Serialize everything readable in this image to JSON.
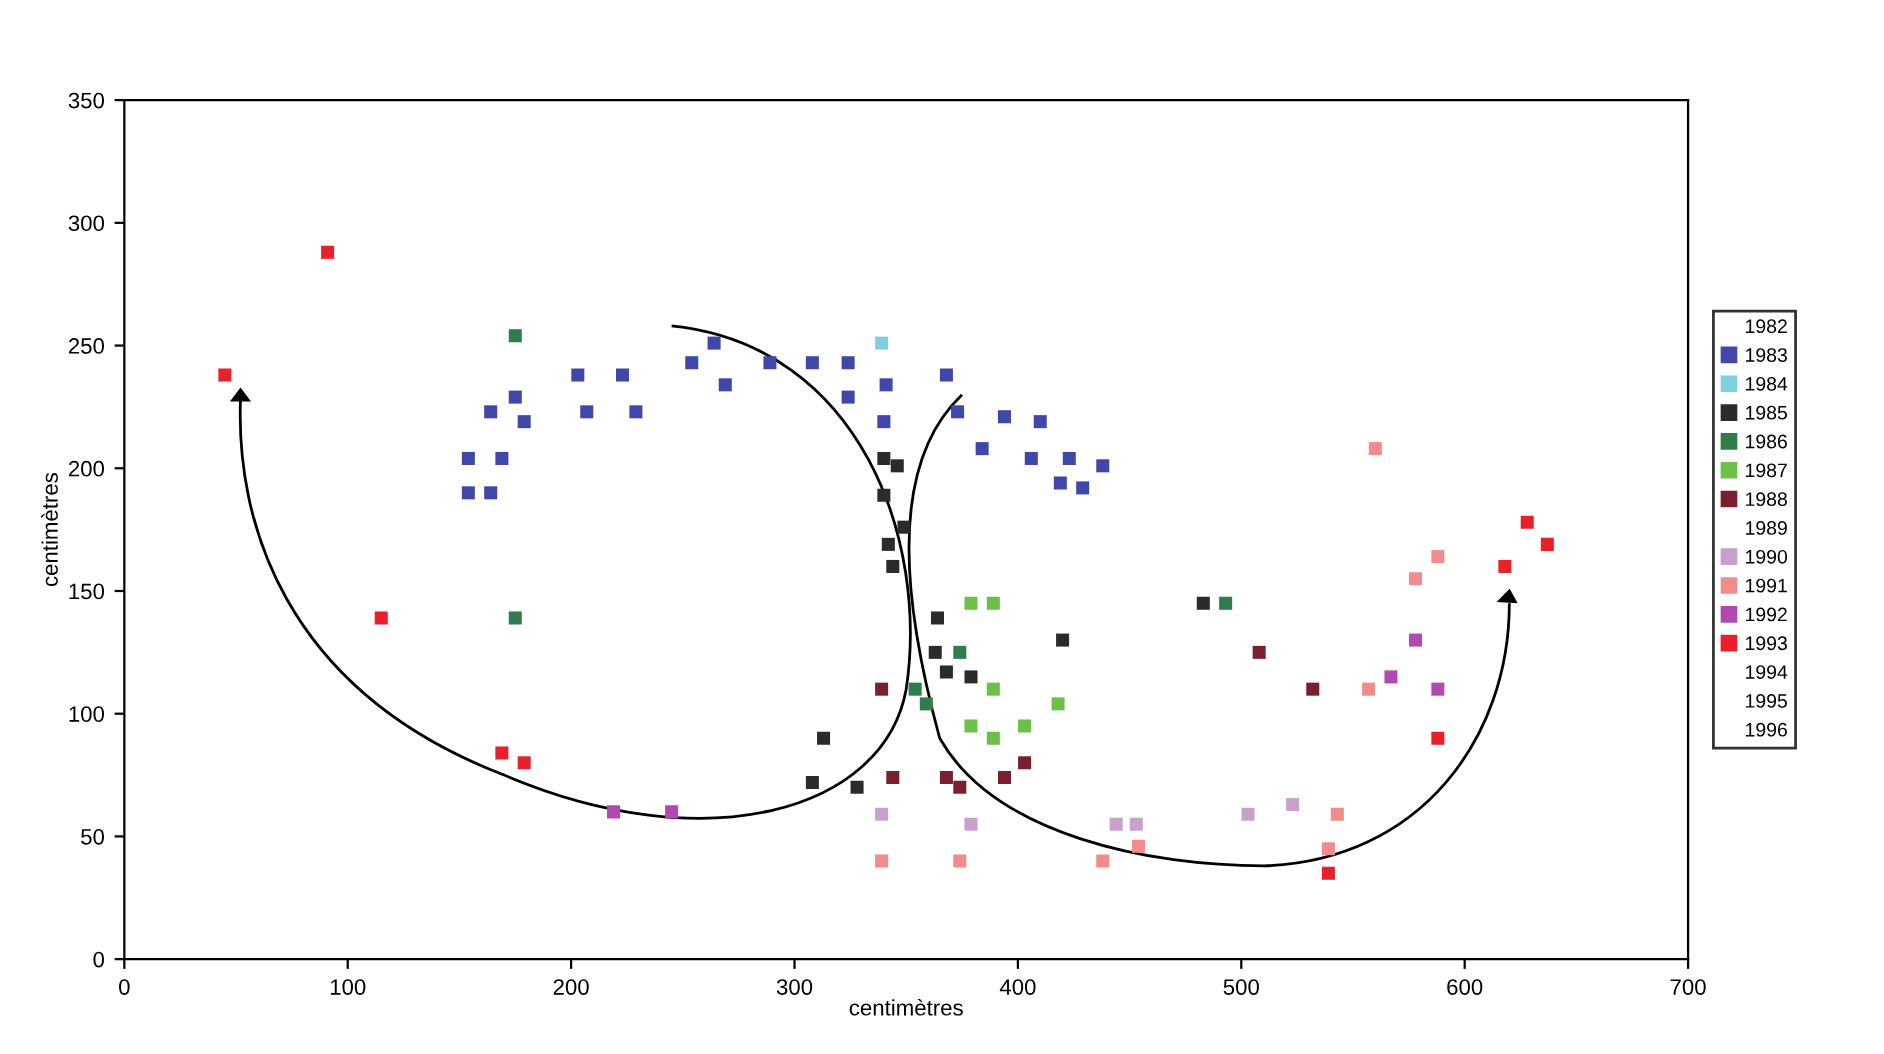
{
  "chart_data": {
    "type": "scatter",
    "xlabel": "centimètres",
    "ylabel": "centimètres",
    "xlim": [
      0,
      700
    ],
    "ylim": [
      0,
      350
    ],
    "xticks": [
      0,
      100,
      200,
      300,
      400,
      500,
      600,
      700
    ],
    "yticks": [
      0,
      50,
      100,
      150,
      200,
      250,
      300,
      350
    ],
    "marker": "square",
    "legend": "right",
    "grid": false,
    "series": [
      {
        "name": "1982"
      },
      {
        "name": "1983",
        "color": "#3f48a8",
        "x": [
          154,
          169,
          154,
          164,
          164,
          175,
          179,
          203,
          223,
          207,
          229,
          254,
          264,
          269,
          289,
          308,
          324,
          324,
          341,
          340,
          368,
          373,
          394,
          410,
          384,
          406,
          423,
          438,
          419,
          429
        ],
        "values": [
          204,
          204,
          190,
          190,
          223,
          229,
          219,
          238,
          238,
          223,
          223,
          243,
          251,
          234,
          243,
          243,
          243,
          229,
          234,
          219,
          238,
          223,
          221,
          219,
          208,
          204,
          204,
          201,
          194,
          192
        ]
      },
      {
        "name": "1984",
        "color": "#7fd0dc",
        "x": [
          339
        ],
        "values": [
          251
        ]
      },
      {
        "name": "1985",
        "color": "#2b2b2b",
        "x": [
          340,
          346,
          340,
          349,
          342,
          344,
          364,
          363,
          368,
          379,
          420,
          313,
          308,
          328,
          483
        ],
        "values": [
          204,
          201,
          189,
          176,
          169,
          160,
          139,
          125,
          117,
          115,
          130,
          90,
          72,
          70,
          145
        ]
      },
      {
        "name": "1986",
        "color": "#2e7d4a",
        "x": [
          175,
          175,
          374,
          354,
          359,
          493
        ],
        "values": [
          254,
          139,
          125,
          110,
          104,
          145
        ]
      },
      {
        "name": "1987",
        "color": "#6cc04a",
        "x": [
          379,
          389,
          389,
          418,
          379,
          403,
          389
        ],
        "values": [
          145,
          145,
          110,
          104,
          95,
          95,
          90
        ]
      },
      {
        "name": "1988",
        "color": "#7a1f2e",
        "x": [
          339,
          344,
          368,
          374,
          394,
          403,
          508,
          532
        ],
        "values": [
          110,
          74,
          74,
          70,
          74,
          80,
          125,
          110
        ]
      },
      {
        "name": "1989"
      },
      {
        "name": "1990",
        "color": "#c8a0cc",
        "x": [
          339,
          379,
          444,
          453,
          503,
          523
        ],
        "values": [
          59,
          55,
          55,
          55,
          59,
          63
        ]
      },
      {
        "name": "1991",
        "color": "#f08c8c",
        "x": [
          339,
          374,
          438,
          454,
          560,
          588,
          578,
          557,
          543,
          539
        ],
        "values": [
          40,
          40,
          40,
          46,
          208,
          164,
          155,
          110,
          59,
          45
        ]
      },
      {
        "name": "1992",
        "color": "#b04ab0",
        "x": [
          219,
          245,
          567,
          588,
          578
        ],
        "values": [
          60,
          60,
          115,
          110,
          130
        ]
      },
      {
        "name": "1993",
        "color": "#e8202a",
        "x": [
          91,
          45,
          115,
          169,
          179,
          628,
          637,
          618,
          588,
          539
        ],
        "values": [
          288,
          238,
          139,
          84,
          80,
          178,
          169,
          160,
          90,
          35
        ]
      },
      {
        "name": "1994"
      },
      {
        "name": "1995"
      },
      {
        "name": "1996"
      }
    ]
  }
}
